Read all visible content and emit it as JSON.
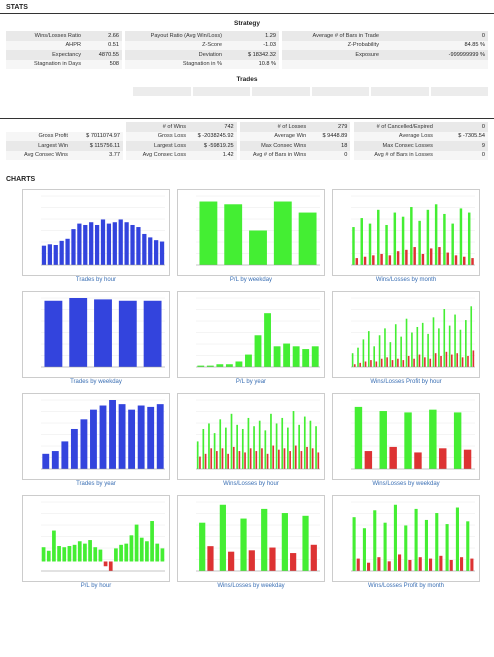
{
  "stats_heading": "STATS",
  "strategy": {
    "title": "Strategy",
    "rows": [
      [
        "Wins/Losses Ratio",
        "2.66",
        "Payout Ratio (Avg Win/Loss)",
        "1.29",
        "Average # of Bars in Trade",
        "0"
      ],
      [
        "AHPR",
        "0.51",
        "Z-Score",
        "-1.03",
        "Z-Probability",
        "84.85 %"
      ],
      [
        "Expectancy",
        "4870.55",
        "Deviation",
        "$ 18342.32",
        "Exposure",
        "-999999999 %"
      ],
      [
        "Stagnation in Days",
        "508",
        "Stagnation in %",
        "10.8 %",
        "",
        ""
      ]
    ]
  },
  "trades": {
    "title": "Trades",
    "header": [
      "",
      "",
      "# of Wins",
      "742",
      "# of Losses",
      "279",
      "# of Cancelled/Expired",
      "0"
    ],
    "rows": [
      [
        "Gross Profit",
        "$ 7011074.97",
        "Gross Loss",
        "$ -2038245.92",
        "Average Win",
        "$ 9448.89",
        "Average Loss",
        "$ -7305.54"
      ],
      [
        "Largest Win",
        "$ 115756.11",
        "Largest Loss",
        "$ -59819.25",
        "Max Consec Wins",
        "18",
        "Max Consec Losses",
        "9"
      ],
      [
        "Avg Consec Wins",
        "3.77",
        "Avg Consec Loss",
        "1.42",
        "Avg # of Bars in Wins",
        "0",
        "Avg # of Bars in Losses",
        "0"
      ]
    ]
  },
  "charts_heading": "CHARTS",
  "charts": [
    {
      "label": "Trades by hour",
      "type": "bar",
      "colors": [
        "#3344dd"
      ],
      "values": [
        28,
        30,
        29,
        35,
        38,
        52,
        60,
        58,
        62,
        58,
        66,
        60,
        62,
        66,
        62,
        58,
        55,
        45,
        40,
        36,
        34
      ]
    },
    {
      "label": "P/L by weekday",
      "type": "bar",
      "colors": [
        "#44ee33"
      ],
      "values": [
        92,
        88,
        50,
        92,
        76
      ]
    },
    {
      "label": "Wins/Losses by month",
      "type": "pair",
      "colors": [
        "#44ee33",
        "#dd3333"
      ],
      "values": [
        [
          55,
          10
        ],
        [
          68,
          12
        ],
        [
          60,
          14
        ],
        [
          80,
          16
        ],
        [
          58,
          14
        ],
        [
          76,
          20
        ],
        [
          70,
          22
        ],
        [
          84,
          26
        ],
        [
          64,
          16
        ],
        [
          80,
          24
        ],
        [
          88,
          26
        ],
        [
          74,
          18
        ],
        [
          60,
          14
        ],
        [
          82,
          12
        ],
        [
          76,
          10
        ]
      ]
    },
    {
      "label": "Trades by weekday",
      "type": "bar",
      "colors": [
        "#3344dd"
      ],
      "values": [
        96,
        100,
        98,
        96,
        96
      ]
    },
    {
      "label": "P/L by year",
      "type": "bar",
      "colors": [
        "#44ee33"
      ],
      "values": [
        2,
        2,
        4,
        4,
        8,
        18,
        46,
        78,
        30,
        34,
        30,
        26,
        30
      ]
    },
    {
      "label": "Wins/Losses Profit by hour",
      "type": "pair",
      "colors": [
        "#44ee33",
        "#dd3333"
      ],
      "values": [
        [
          20,
          4
        ],
        [
          28,
          6
        ],
        [
          40,
          8
        ],
        [
          52,
          10
        ],
        [
          30,
          8
        ],
        [
          46,
          12
        ],
        [
          56,
          14
        ],
        [
          36,
          10
        ],
        [
          62,
          12
        ],
        [
          44,
          10
        ],
        [
          70,
          16
        ],
        [
          50,
          12
        ],
        [
          58,
          18
        ],
        [
          64,
          14
        ],
        [
          48,
          12
        ],
        [
          72,
          20
        ],
        [
          56,
          16
        ],
        [
          84,
          22
        ],
        [
          60,
          18
        ],
        [
          76,
          20
        ],
        [
          54,
          14
        ],
        [
          68,
          16
        ],
        [
          88,
          24
        ]
      ]
    },
    {
      "label": "Trades by year",
      "type": "bar",
      "colors": [
        "#3344dd"
      ],
      "values": [
        22,
        26,
        40,
        58,
        72,
        86,
        92,
        100,
        94,
        86,
        92,
        90,
        94
      ]
    },
    {
      "label": "Wins/Losses by hour",
      "type": "pair",
      "colors": [
        "#44ee33",
        "#dd3333"
      ],
      "values": [
        [
          40,
          18
        ],
        [
          58,
          22
        ],
        [
          66,
          30
        ],
        [
          52,
          26
        ],
        [
          72,
          30
        ],
        [
          60,
          22
        ],
        [
          80,
          32
        ],
        [
          64,
          26
        ],
        [
          58,
          24
        ],
        [
          74,
          30
        ],
        [
          62,
          26
        ],
        [
          70,
          30
        ],
        [
          56,
          22
        ],
        [
          80,
          34
        ],
        [
          66,
          28
        ],
        [
          74,
          30
        ],
        [
          60,
          26
        ],
        [
          84,
          34
        ],
        [
          64,
          26
        ],
        [
          76,
          32
        ],
        [
          70,
          30
        ],
        [
          62,
          24
        ]
      ]
    },
    {
      "label": "Wins/Losses by weekday",
      "type": "pair",
      "colors": [
        "#44ee33",
        "#dd3333"
      ],
      "values": [
        [
          90,
          26
        ],
        [
          84,
          32
        ],
        [
          82,
          24
        ],
        [
          86,
          30
        ],
        [
          82,
          28
        ]
      ]
    },
    {
      "label": "P/L by hour",
      "type": "bar",
      "colors": [
        "#44ee33"
      ],
      "values": [
        24,
        18,
        52,
        26,
        24,
        26,
        28,
        34,
        30,
        36,
        24,
        20,
        -8,
        -16,
        22,
        28,
        30,
        44,
        62,
        40,
        34,
        68,
        30,
        22
      ]
    },
    {
      "label": "Wins/Losses by weekday",
      "type": "pair",
      "colors": [
        "#44ee33",
        "#dd3333"
      ],
      "values": [
        [
          70,
          36
        ],
        [
          96,
          28
        ],
        [
          76,
          30
        ],
        [
          90,
          34
        ],
        [
          84,
          26
        ],
        [
          80,
          38
        ]
      ]
    },
    {
      "label": "Wins/Losses Profit by month",
      "type": "pair",
      "colors": [
        "#44ee33",
        "#dd3333"
      ],
      "values": [
        [
          78,
          18
        ],
        [
          62,
          12
        ],
        [
          88,
          20
        ],
        [
          70,
          14
        ],
        [
          96,
          24
        ],
        [
          66,
          16
        ],
        [
          90,
          20
        ],
        [
          74,
          18
        ],
        [
          84,
          22
        ],
        [
          68,
          16
        ],
        [
          92,
          20
        ],
        [
          72,
          18
        ]
      ]
    }
  ]
}
